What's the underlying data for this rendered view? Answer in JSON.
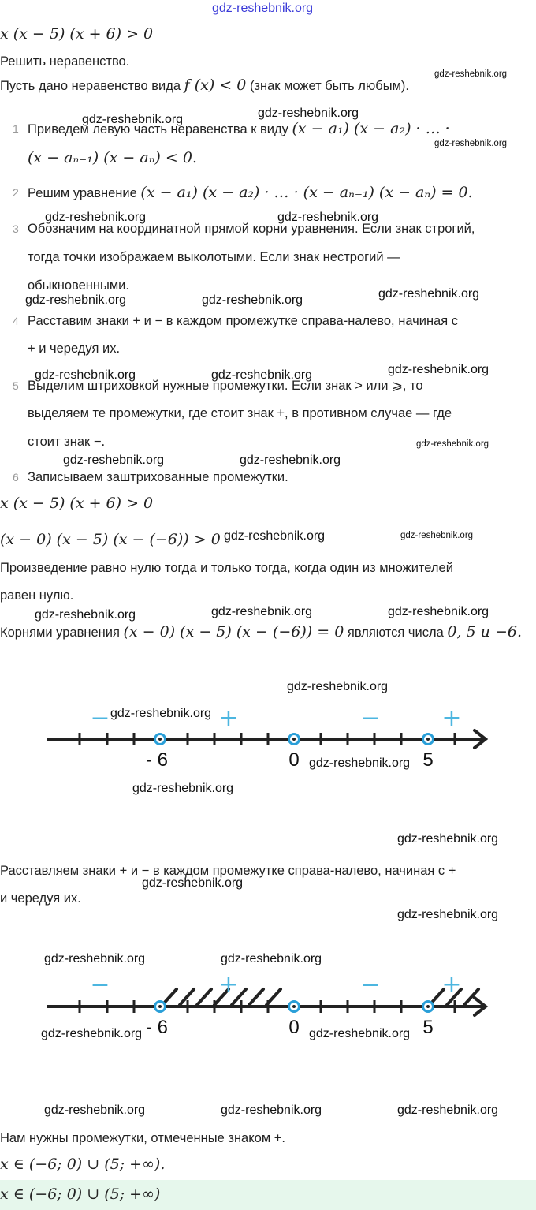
{
  "watermark": "gdz-reshebnik.org",
  "problem": "x (x − 5) (x + 6) > 0",
  "task": "Решить неравенство.",
  "intro": {
    "before": "Пусть дано неравенство вида",
    "formula": "f (x) < 0",
    "after": "(знак может быть любым)."
  },
  "steps": [
    {
      "n": "1",
      "lines": [
        "Приведем левую часть неравенства к виду",
        "(x − a₁) (x − a₂) · … ·",
        "(x − aₙ₋₁) (x − aₙ) < 0."
      ]
    },
    {
      "n": "2",
      "text": "Решим уравнение",
      "formula": "(x − a₁) (x − a₂) · … · (x − aₙ₋₁) (x − aₙ) = 0."
    },
    {
      "n": "3",
      "lines": [
        "Обозначим на координатной прямой корни уравнения. Если знак строгий,",
        "тогда точки изображаем выколотыми. Если знак нестрогий —",
        "обыкновенными."
      ]
    },
    {
      "n": "4",
      "lines": [
        "Расставим знаки + и − в каждом промежутке справа-налево, начиная с",
        "+ и чередуя их."
      ]
    },
    {
      "n": "5",
      "lines": [
        "Выделим штриховкой нужные промежутки. Если знак > или ⩾, то",
        "выделяем те промежутки, где стоит знак +, в противном случае — где",
        "стоит знак −."
      ]
    },
    {
      "n": "6",
      "lines": [
        "Записываем заштрихованные промежутки."
      ]
    }
  ],
  "solution": {
    "f1": "x (x − 5) (x + 6) > 0",
    "f2": "(x − 0) (x − 5) (x − (−6)) > 0",
    "p1": [
      "Произведение равно нулю тогда и только тогда, когда один из множителей",
      "равен нулю."
    ],
    "roots": {
      "before": "Корнями уравнения",
      "formula": "(x − 0) (x − 5) (x − (−6)) = 0",
      "after": "являются числа",
      "values": "0, 5 и −6."
    },
    "p2": [
      "Расставляем знаки + и − в каждом промежутке справа-налево, начиная с +",
      "и чередуя их."
    ],
    "p3": "Нам нужны промежутки, отмеченные знаком +.",
    "answer1": "x ∈ (−6; 0) ∪ (5; +∞).",
    "answer2": "x ∈ (−6; 0) ∪ (5; +∞)"
  },
  "number_line": {
    "points": [
      "-6",
      "0",
      "5"
    ],
    "signs": [
      "−",
      "+",
      "−",
      "+"
    ],
    "shaded": [
      "(-6; 0)",
      "(5; +∞)"
    ],
    "colors": {
      "axis": "#222222",
      "point": "#2a9fd8",
      "sign": "#4cb6e0"
    }
  }
}
